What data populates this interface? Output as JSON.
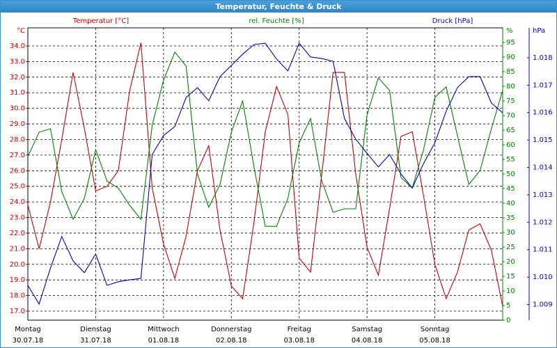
{
  "window_title": "Temperatur, Feuchte & Druck",
  "chart_data": {
    "type": "line",
    "grid": true,
    "xlim": [
      0,
      168
    ],
    "xticks": [
      0,
      24,
      48,
      72,
      96,
      120,
      144
    ],
    "x_day_names": [
      "Montag",
      "Dienstag",
      "Mittwoch",
      "Donnerstag",
      "Freitag",
      "Samstag",
      "Sonntag"
    ],
    "x_dates": [
      "30.07.18",
      "31.07.18",
      "01.08.18",
      "02.08.18",
      "03.08.18",
      "04.08.18",
      "05.08.18"
    ],
    "x": [
      0,
      4,
      8,
      12,
      16,
      20,
      24,
      28,
      32,
      36,
      40,
      44,
      48,
      52,
      56,
      60,
      64,
      68,
      72,
      76,
      80,
      84,
      88,
      92,
      96,
      100,
      104,
      108,
      112,
      116,
      120,
      124,
      128,
      132,
      136,
      140,
      144,
      148,
      152,
      156,
      160,
      164,
      168
    ],
    "ylim": [
      16.42,
      35.16
    ],
    "y_unit": "°C",
    "yticks": [
      {
        "value": 17,
        "label": "17.0"
      },
      {
        "value": 18,
        "label": "18.0"
      },
      {
        "value": 19,
        "label": "19.0"
      },
      {
        "value": 20,
        "label": "20.0"
      },
      {
        "value": 21,
        "label": "21.0"
      },
      {
        "value": 22,
        "label": "22.0"
      },
      {
        "value": 23,
        "label": "23.0"
      },
      {
        "value": 24,
        "label": "24.0"
      },
      {
        "value": 25,
        "label": "25.0"
      },
      {
        "value": 26,
        "label": "26.0"
      },
      {
        "value": 27,
        "label": "27.0"
      },
      {
        "value": 28,
        "label": "28.0"
      },
      {
        "value": 29,
        "label": "29.0"
      },
      {
        "value": 30,
        "label": "30.0"
      },
      {
        "value": 31,
        "label": "31.0"
      },
      {
        "value": 32,
        "label": "32.0"
      },
      {
        "value": 33,
        "label": "33.0"
      },
      {
        "value": 34,
        "label": "34.0"
      }
    ],
    "y2lim": [
      0,
      100
    ],
    "y2_unit": "%",
    "y2ticks": [
      0,
      5,
      10,
      15,
      20,
      25,
      30,
      35,
      40,
      45,
      50,
      55,
      60,
      65,
      70,
      75,
      80,
      85,
      90,
      95
    ],
    "y3lim": [
      1008.43,
      1019.09
    ],
    "y3_unit": "hPa",
    "y3ticks": [
      {
        "value": 1009,
        "label": "1.009"
      },
      {
        "value": 1010,
        "label": "1.010"
      },
      {
        "value": 1011,
        "label": "1.011"
      },
      {
        "value": 1012,
        "label": "1.012"
      },
      {
        "value": 1013,
        "label": "1.013"
      },
      {
        "value": 1014,
        "label": "1.014"
      },
      {
        "value": 1015,
        "label": "1.015"
      },
      {
        "value": 1016,
        "label": "1.016"
      },
      {
        "value": 1017,
        "label": "1.017"
      },
      {
        "value": 1018,
        "label": "1.018"
      }
    ],
    "series": [
      {
        "name": "Temperatur [°C]",
        "color": "#c00000",
        "axis": "y",
        "values": [
          23.8,
          21.0,
          24.0,
          28.0,
          32.3,
          28.7,
          24.7,
          25.0,
          26.0,
          31.1,
          34.2,
          24.9,
          21.3,
          19.1,
          21.8,
          26.0,
          27.6,
          22.2,
          18.6,
          17.8,
          22.7,
          28.5,
          31.4,
          29.6,
          20.4,
          19.5,
          25.8,
          32.3,
          32.3,
          25.8,
          21.1,
          19.3,
          23.6,
          28.2,
          28.5,
          24.4,
          20.0,
          17.8,
          19.5,
          22.2,
          22.6,
          20.9,
          17.3
        ]
      },
      {
        "name": "rel. Feuchte [%]",
        "color": "#008000",
        "axis": "y2",
        "values": [
          56.0,
          64.3,
          65.5,
          44.0,
          34.5,
          41.7,
          58.3,
          47.6,
          45.2,
          39.3,
          34.5,
          66.7,
          82.1,
          91.7,
          86.9,
          50.0,
          38.6,
          46.4,
          64.3,
          75.0,
          52.4,
          32.1,
          32.1,
          41.7,
          60.7,
          69.0,
          47.6,
          36.9,
          38.1,
          38.1,
          70.2,
          82.9,
          78.6,
          48.8,
          45.2,
          58.3,
          76.2,
          79.8,
          63.1,
          46.4,
          51.2,
          65.5,
          78.6
        ]
      },
      {
        "name": "Druck [hPa]",
        "color": "#0000c0",
        "axis": "y3",
        "values": [
          1009.7,
          1009.02,
          1010.33,
          1011.48,
          1010.59,
          1010.16,
          1010.84,
          1009.7,
          1009.83,
          1009.9,
          1009.95,
          1014.47,
          1015.16,
          1015.49,
          1016.55,
          1016.91,
          1016.43,
          1017.31,
          1017.72,
          1018.13,
          1018.48,
          1018.53,
          1017.95,
          1017.52,
          1018.53,
          1018.03,
          1017.97,
          1017.87,
          1015.79,
          1015.03,
          1014.52,
          1014.02,
          1014.47,
          1013.76,
          1013.25,
          1014.14,
          1014.9,
          1016.05,
          1016.91,
          1017.31,
          1017.31,
          1016.35,
          1015.99
        ]
      }
    ]
  }
}
